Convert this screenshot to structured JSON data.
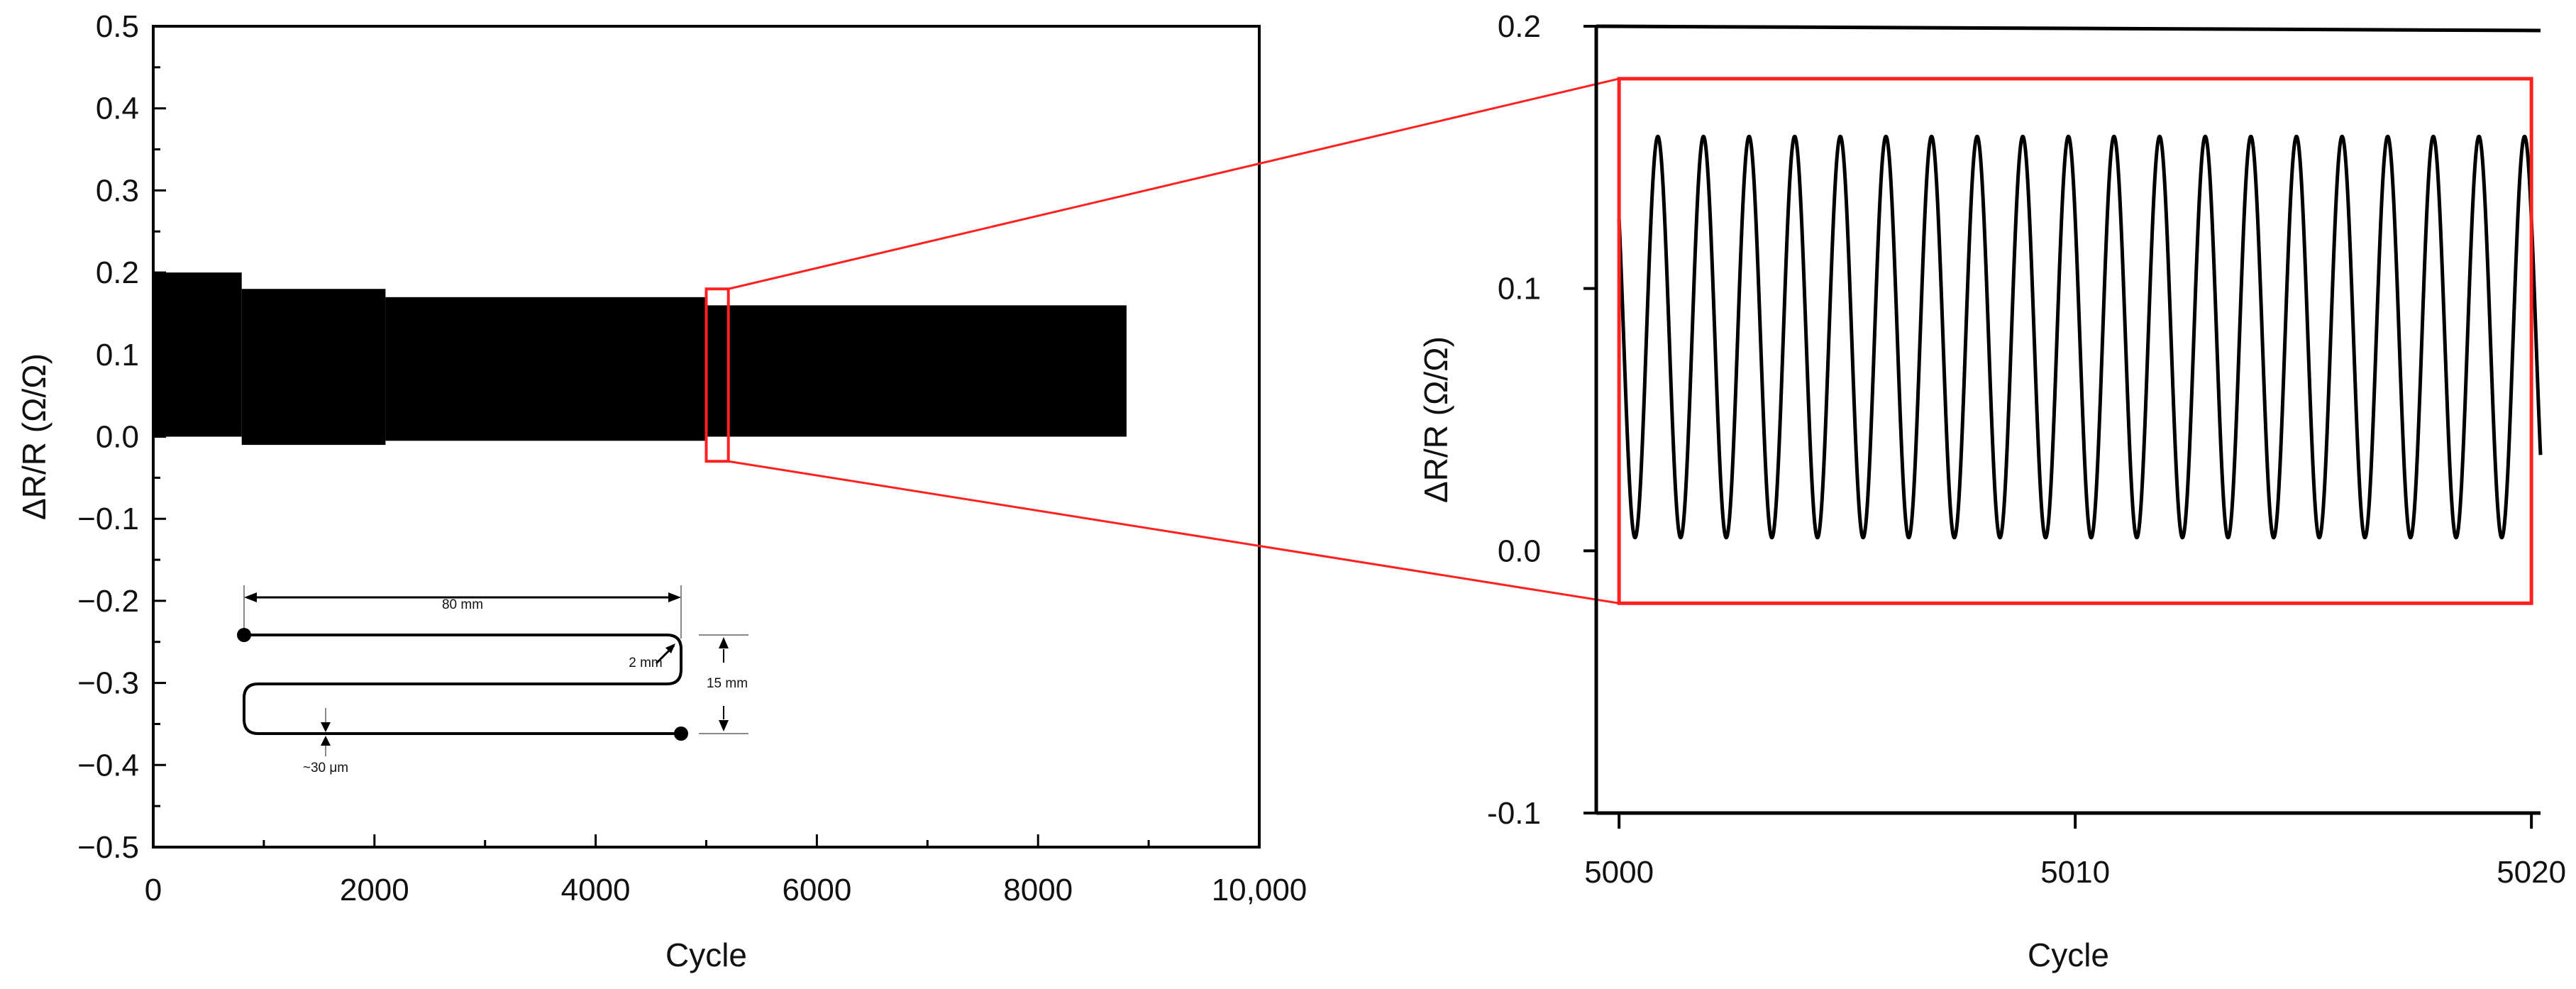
{
  "chart_data": [
    {
      "type": "line",
      "panel": "left",
      "xlabel": "Cycle",
      "ylabel": "ΔR/R (Ω/Ω)",
      "xlim": [
        0,
        10000
      ],
      "ylim": [
        -0.5,
        0.5
      ],
      "xticks": [
        0,
        2000,
        4000,
        6000,
        8000,
        10000
      ],
      "xtick_labels": [
        "0",
        "2000",
        "4000",
        "6000",
        "8000",
        "10,000"
      ],
      "yticks": [
        0.5,
        0.4,
        0.3,
        0.2,
        0.1,
        0.0,
        -0.1,
        -0.2,
        -0.3,
        -0.4,
        -0.5
      ],
      "ytick_labels": [
        "0.5",
        "0.4",
        "0.3",
        "0.2",
        "0.1",
        "0.0",
        "−0.1",
        "−0.2",
        "−0.3",
        "−0.4",
        "−0.5"
      ],
      "grid": false,
      "series": [
        {
          "color": "#000000",
          "envelope": [
            {
              "x0": 0,
              "x1": 800,
              "min": 0.0,
              "max": 0.2
            },
            {
              "x0": 800,
              "x1": 2100,
              "min": -0.01,
              "max": 0.18
            },
            {
              "x0": 2100,
              "x1": 5000,
              "min": -0.005,
              "max": 0.17
            },
            {
              "x0": 5000,
              "x1": 8800,
              "min": 0.0,
              "max": 0.16
            }
          ]
        }
      ],
      "zoom_box": {
        "x": [
          5000,
          5200
        ],
        "y": [
          -0.03,
          0.18
        ],
        "color": "#ff2020"
      },
      "inset": {
        "dim_80": "80 mm",
        "dim_2": "2 mm",
        "dim_15": "15 mm",
        "dim_30": "~30 μm"
      }
    },
    {
      "type": "line",
      "panel": "right",
      "xlabel": "Cycle",
      "ylabel": "ΔR/R (Ω/Ω)",
      "xlim": [
        4999.5,
        5020.2
      ],
      "ylim": [
        -0.1,
        0.2
      ],
      "xticks": [
        5000,
        5010,
        5020
      ],
      "xtick_labels": [
        "5000",
        "5010",
        "5020"
      ],
      "yticks": [
        0.2,
        0.1,
        0.0,
        -0.1
      ],
      "ytick_labels": [
        "0.2",
        "0.1",
        "0.0",
        "-0.1"
      ],
      "grid": false,
      "series": [
        {
          "color": "#000000",
          "period": 1.0,
          "min": 0.005,
          "max": 0.158,
          "x_start": 5000.0,
          "x_end": 5020.2
        }
      ],
      "highlight_box": {
        "x": [
          5000,
          5020
        ],
        "y": [
          -0.02,
          0.18
        ],
        "color": "#ff2020"
      }
    }
  ]
}
